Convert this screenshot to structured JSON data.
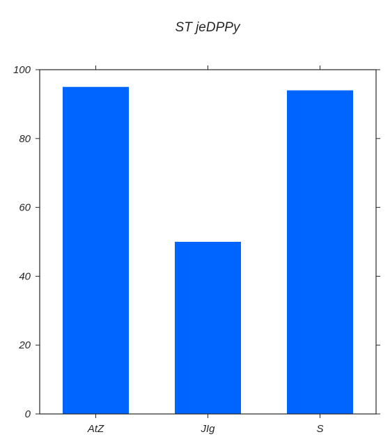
{
  "chart_data": {
    "type": "bar",
    "title": "ST  jeDPPy",
    "categories": [
      "AtZ",
      "JIg",
      "S"
    ],
    "series": [
      {
        "values": [
          95,
          50,
          94
        ]
      }
    ],
    "xlabel": "",
    "ylabel": "",
    "ylim": [
      0,
      100
    ],
    "yticks": [
      0,
      20,
      40,
      60,
      80,
      100
    ],
    "grid": false,
    "bar_color": "#0064ff"
  }
}
